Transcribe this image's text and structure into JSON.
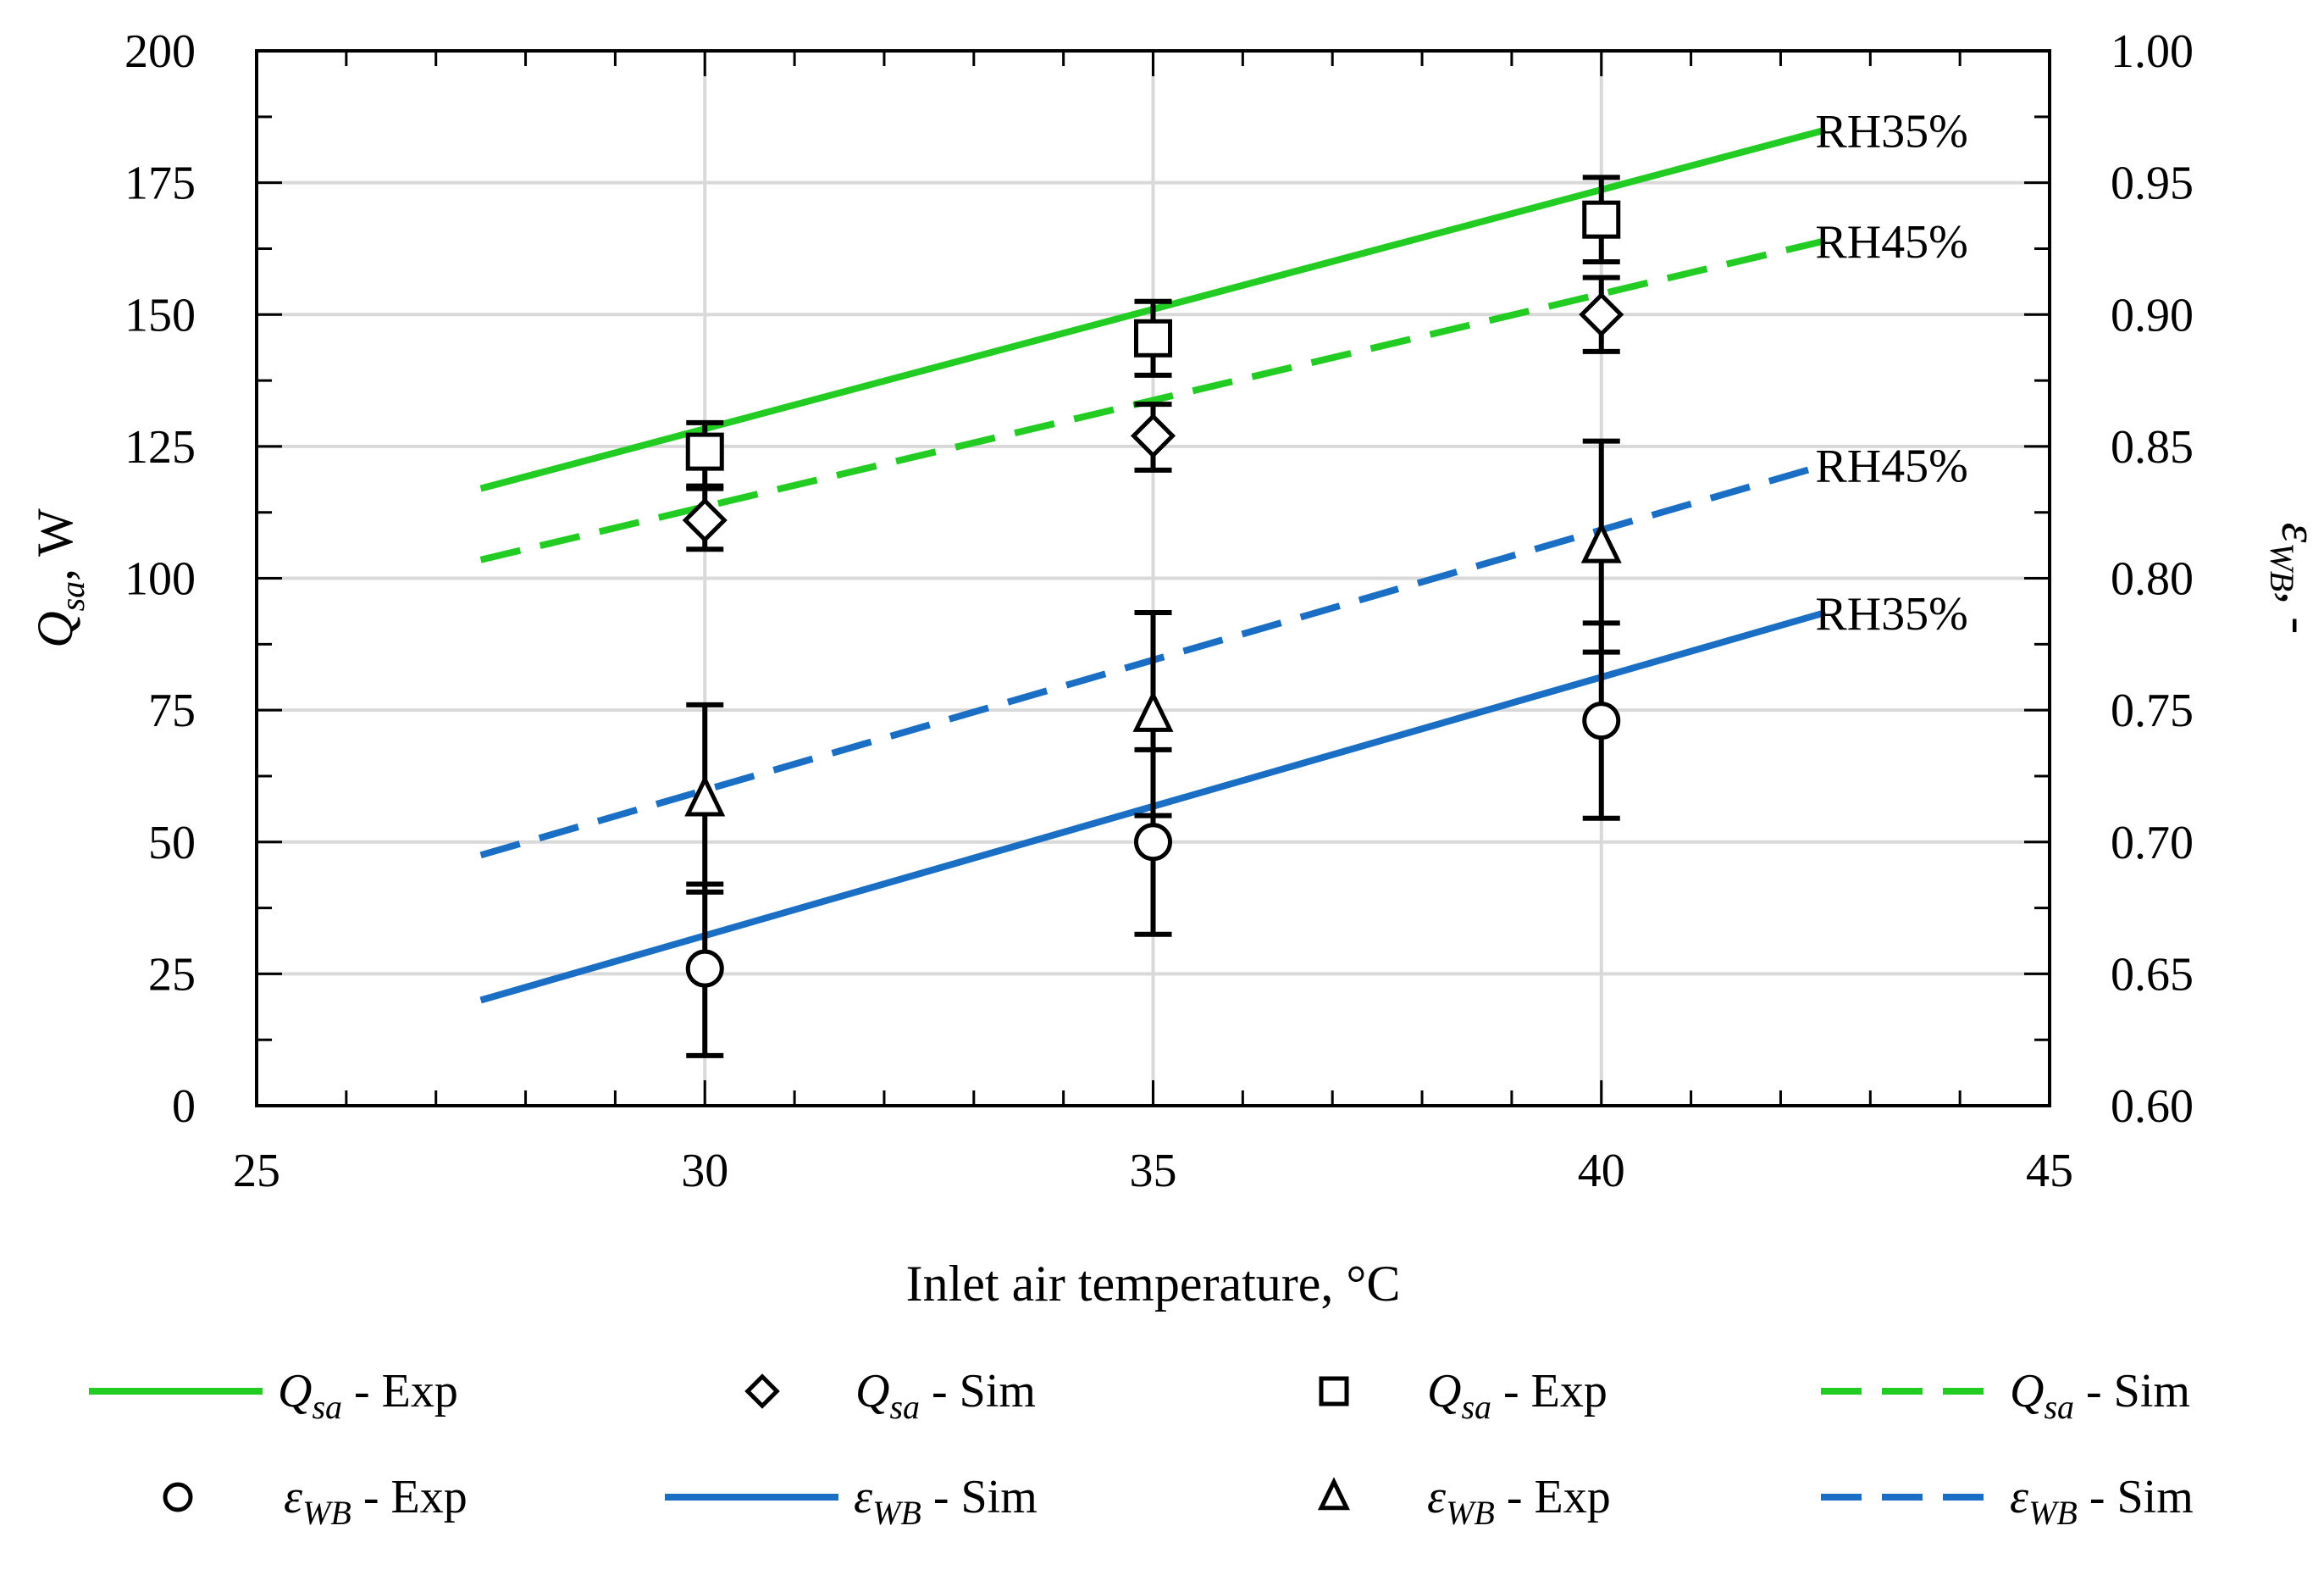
{
  "chart_data": {
    "type": "line",
    "xlabel": "Inlet air temperature, °C",
    "ylabel_left": {
      "symbol": "Q",
      "subscript": "sa",
      "unit": ", W"
    },
    "ylabel_right": {
      "symbol": "ε",
      "subscript": "WB",
      "unit": ", -"
    },
    "xlim": [
      25,
      45
    ],
    "ylim_left": [
      0,
      200
    ],
    "ylim_right": [
      0.6,
      1.0
    ],
    "x_ticks": [
      "25",
      "30",
      "35",
      "40",
      "45"
    ],
    "y_left_ticks": [
      "0",
      "25",
      "50",
      "75",
      "100",
      "125",
      "150",
      "175",
      "200"
    ],
    "y_right_ticks": [
      "0.60",
      "0.65",
      "0.70",
      "0.75",
      "0.80",
      "0.85",
      "0.90",
      "0.95",
      "1.00"
    ],
    "grid": true,
    "lines": [
      {
        "name": "Q_sa - Exp (RH35%)",
        "axis": "left",
        "color": "#22cc22",
        "dash": "solid",
        "x": [
          27.5,
          42.5
        ],
        "y": [
          117,
          185
        ],
        "label": "RH35%"
      },
      {
        "name": "Q_sa - Sim (RH45%)",
        "axis": "left",
        "color": "#22cc22",
        "dash": "dashed",
        "x": [
          27.5,
          42.5
        ],
        "y": [
          103.5,
          164
        ],
        "label": "RH45%"
      },
      {
        "name": "ε_WB - Sim (RH45%)",
        "axis": "right",
        "color": "#1a6fc4",
        "dash": "dashed",
        "x": [
          27.5,
          42.5
        ],
        "y": [
          0.695,
          0.843
        ],
        "label": "RH45%"
      },
      {
        "name": "ε_WB - Sim (RH35%)",
        "axis": "right",
        "color": "#1a6fc4",
        "dash": "solid",
        "x": [
          27.5,
          42.5
        ],
        "y": [
          0.64,
          0.787
        ],
        "label": "RH35%"
      }
    ],
    "points": [
      {
        "series": "Q_sa - Exp",
        "marker": "square",
        "x": [
          30,
          35,
          40
        ],
        "y": [
          124,
          145.5,
          168
        ],
        "err_low": [
          117,
          138.5,
          160
        ],
        "err_high": [
          129.5,
          152.5,
          176
        ]
      },
      {
        "series": "Q_sa - Sim",
        "marker": "diamond",
        "x": [
          30,
          35,
          40
        ],
        "y": [
          111,
          127,
          150
        ],
        "err_low": [
          105.5,
          120.5,
          143
        ],
        "err_high": [
          117.5,
          133,
          157
        ]
      },
      {
        "series": "ε_WB - Exp (triangle)",
        "marker": "triangle",
        "x": [
          30,
          35,
          40
        ],
        "y": [
          58,
          74,
          106
        ],
        "err_low": [
          40.5,
          55,
          86
        ],
        "err_high": [
          76,
          93.5,
          126
        ]
      },
      {
        "series": "ε_WB - Exp (circle)",
        "marker": "circle",
        "x": [
          30,
          35,
          40
        ],
        "y": [
          26,
          50,
          73
        ],
        "err_low": [
          9.5,
          32.5,
          54.5
        ],
        "err_high": [
          42,
          67.5,
          91.5
        ]
      }
    ],
    "annotations": [
      "RH35%",
      "RH45%",
      "RH45%",
      "RH35%"
    ],
    "legend": [
      {
        "kind": "line",
        "color": "#22cc22",
        "dash": "solid",
        "symbol": "Q",
        "sub": "sa",
        "text": " - Exp"
      },
      {
        "kind": "marker",
        "marker": "diamond",
        "symbol": "Q",
        "sub": "sa",
        "text": " - Sim"
      },
      {
        "kind": "marker",
        "marker": "square",
        "symbol": "Q",
        "sub": "sa",
        "text": " - Exp"
      },
      {
        "kind": "line",
        "color": "#22cc22",
        "dash": "dashed",
        "symbol": "Q",
        "sub": "sa",
        "text": " - Sim"
      },
      {
        "kind": "marker",
        "marker": "circle",
        "symbol": "ε",
        "sub": "WB",
        "text": " - Exp"
      },
      {
        "kind": "line",
        "color": "#1a6fc4",
        "dash": "solid",
        "symbol": "ε",
        "sub": "WB",
        "text": " - Sim"
      },
      {
        "kind": "marker",
        "marker": "triangle",
        "symbol": "ε",
        "sub": "WB",
        "text": " - Exp"
      },
      {
        "kind": "line",
        "color": "#1a6fc4",
        "dash": "dashed",
        "symbol": "ε",
        "sub": "WB",
        "text": " - Sim"
      }
    ]
  }
}
